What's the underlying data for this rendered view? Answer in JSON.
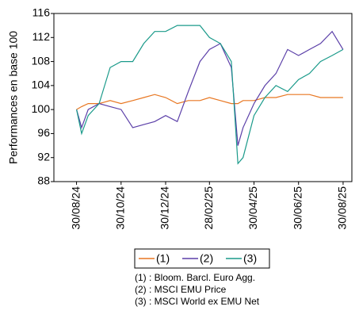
{
  "chart_data": {
    "type": "line",
    "y_label": "Performances en base 100",
    "x": [
      "30/08/24",
      "06/09/24",
      "15/09/24",
      "30/09/24",
      "15/10/24",
      "30/10/24",
      "15/11/24",
      "30/11/24",
      "15/12/24",
      "30/12/24",
      "15/01/25",
      "30/01/25",
      "15/02/25",
      "28/02/25",
      "15/03/25",
      "30/03/25",
      "08/04/25",
      "15/04/25",
      "30/04/25",
      "15/05/25",
      "30/05/25",
      "15/06/25",
      "30/06/25",
      "15/07/25",
      "30/07/25",
      "15/08/25",
      "30/08/25"
    ],
    "series": [
      {
        "name": "(1)",
        "color": "#e87722",
        "values": [
          100,
          100.5,
          101,
          101,
          101.5,
          101,
          101.5,
          102,
          102.5,
          102,
          101,
          101.5,
          101.5,
          102,
          101.5,
          101,
          101,
          101.5,
          101.5,
          102,
          102,
          102.5,
          102.5,
          102.5,
          102,
          102,
          102
        ]
      },
      {
        "name": "(2)",
        "color": "#5b3fa8",
        "values": [
          100,
          97,
          100,
          101,
          100.5,
          100,
          97,
          97.5,
          98,
          99,
          98,
          103,
          108,
          110,
          111,
          107,
          94,
          97,
          101,
          104,
          106,
          110,
          109,
          110,
          111,
          113,
          110
        ]
      },
      {
        "name": "(3)",
        "color": "#1a9a8a",
        "values": [
          100,
          96,
          99,
          101,
          107,
          108,
          108,
          111,
          113,
          113,
          114,
          114,
          114,
          112,
          111,
          108,
          91,
          92,
          99,
          102,
          104,
          103,
          105,
          106,
          108,
          109,
          110
        ]
      }
    ],
    "xlim": [
      "30/07/24",
      "11/09/25"
    ],
    "xticks": [
      "30/08/24",
      "30/10/24",
      "30/12/24",
      "28/02/25",
      "30/04/25",
      "30/06/25",
      "30/08/25"
    ],
    "ylim": [
      88,
      116
    ],
    "yticks": [
      88,
      92,
      96,
      100,
      104,
      108,
      112,
      116
    ],
    "notes": [
      "(1) : Bloom. Barcl. Euro Agg.",
      "(2) : MSCI EMU Price",
      "(3) : MSCI World ex EMU Net"
    ]
  }
}
